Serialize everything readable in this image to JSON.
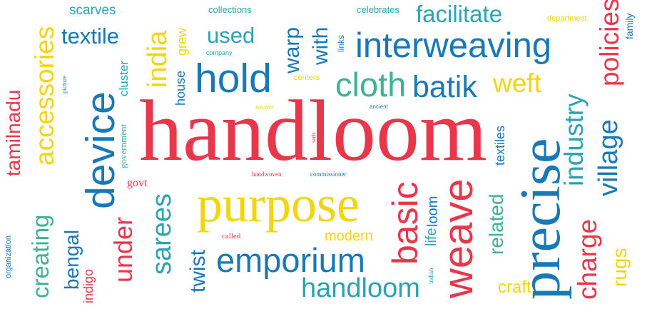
{
  "colors": {
    "red": "#e8364b",
    "blue": "#1779b8",
    "teal": "#2aa3b4",
    "green": "#3fb28f",
    "yellow": "#f4d40a"
  },
  "words": [
    {
      "text": "handloom",
      "color": "red"
    },
    {
      "text": "purpose",
      "color": "yellow"
    },
    {
      "text": "precise",
      "color": "blue"
    },
    {
      "text": "interweaving",
      "color": "blue"
    },
    {
      "text": "device",
      "color": "blue"
    },
    {
      "text": "hold",
      "color": "blue"
    },
    {
      "text": "emporium",
      "color": "blue"
    },
    {
      "text": "cloth",
      "color": "green"
    },
    {
      "text": "batik",
      "color": "blue"
    },
    {
      "text": "weave",
      "color": "red"
    },
    {
      "text": "basic",
      "color": "red"
    },
    {
      "text": "handloom",
      "color": "teal"
    },
    {
      "text": "facilitate",
      "color": "teal"
    },
    {
      "text": "accessories",
      "color": "yellow"
    },
    {
      "text": "sarees",
      "color": "teal"
    },
    {
      "text": "india",
      "color": "yellow"
    },
    {
      "text": "weft",
      "color": "yellow"
    },
    {
      "text": "industry",
      "color": "teal"
    },
    {
      "text": "village",
      "color": "blue"
    },
    {
      "text": "policies",
      "color": "red"
    },
    {
      "text": "charge",
      "color": "red"
    },
    {
      "text": "under",
      "color": "red"
    },
    {
      "text": "creating",
      "color": "green"
    },
    {
      "text": "tamilnadu",
      "color": "red"
    },
    {
      "text": "textile",
      "color": "blue"
    },
    {
      "text": "used",
      "color": "teal"
    },
    {
      "text": "warp",
      "color": "blue"
    },
    {
      "text": "with",
      "color": "blue"
    },
    {
      "text": "bengal",
      "color": "blue"
    },
    {
      "text": "twist",
      "color": "blue"
    },
    {
      "text": "related",
      "color": "green"
    },
    {
      "text": "rugs",
      "color": "yellow"
    },
    {
      "text": "craft",
      "color": "yellow"
    },
    {
      "text": "modern",
      "color": "yellow"
    },
    {
      "text": "loom",
      "color": "blue"
    },
    {
      "text": "life",
      "color": "teal"
    },
    {
      "text": "textiles",
      "color": "blue"
    },
    {
      "text": "scarves",
      "color": "teal"
    },
    {
      "text": "house",
      "color": "blue"
    },
    {
      "text": "cluster",
      "color": "teal"
    },
    {
      "text": "grew",
      "color": "yellow"
    },
    {
      "text": "government",
      "color": "green"
    },
    {
      "text": "indigo",
      "color": "red"
    },
    {
      "text": "govt",
      "color": "red"
    },
    {
      "text": "family",
      "color": "blue"
    },
    {
      "text": "collections",
      "color": "teal"
    },
    {
      "text": "celebrates",
      "color": "teal"
    },
    {
      "text": "links",
      "color": "blue"
    },
    {
      "text": "department",
      "color": "yellow"
    },
    {
      "text": "company",
      "color": "teal"
    },
    {
      "text": "centers",
      "color": "yellow"
    },
    {
      "text": "picture",
      "color": "blue"
    },
    {
      "text": "weaver",
      "color": "yellow"
    },
    {
      "text": "ancient",
      "color": "blue"
    },
    {
      "text": "saris",
      "color": "red"
    },
    {
      "text": "handwoven",
      "color": "red"
    },
    {
      "text": "commissioner",
      "color": "blue"
    },
    {
      "text": "called",
      "color": "red"
    },
    {
      "text": "organization",
      "color": "blue"
    },
    {
      "text": "indian",
      "color": "teal"
    }
  ]
}
